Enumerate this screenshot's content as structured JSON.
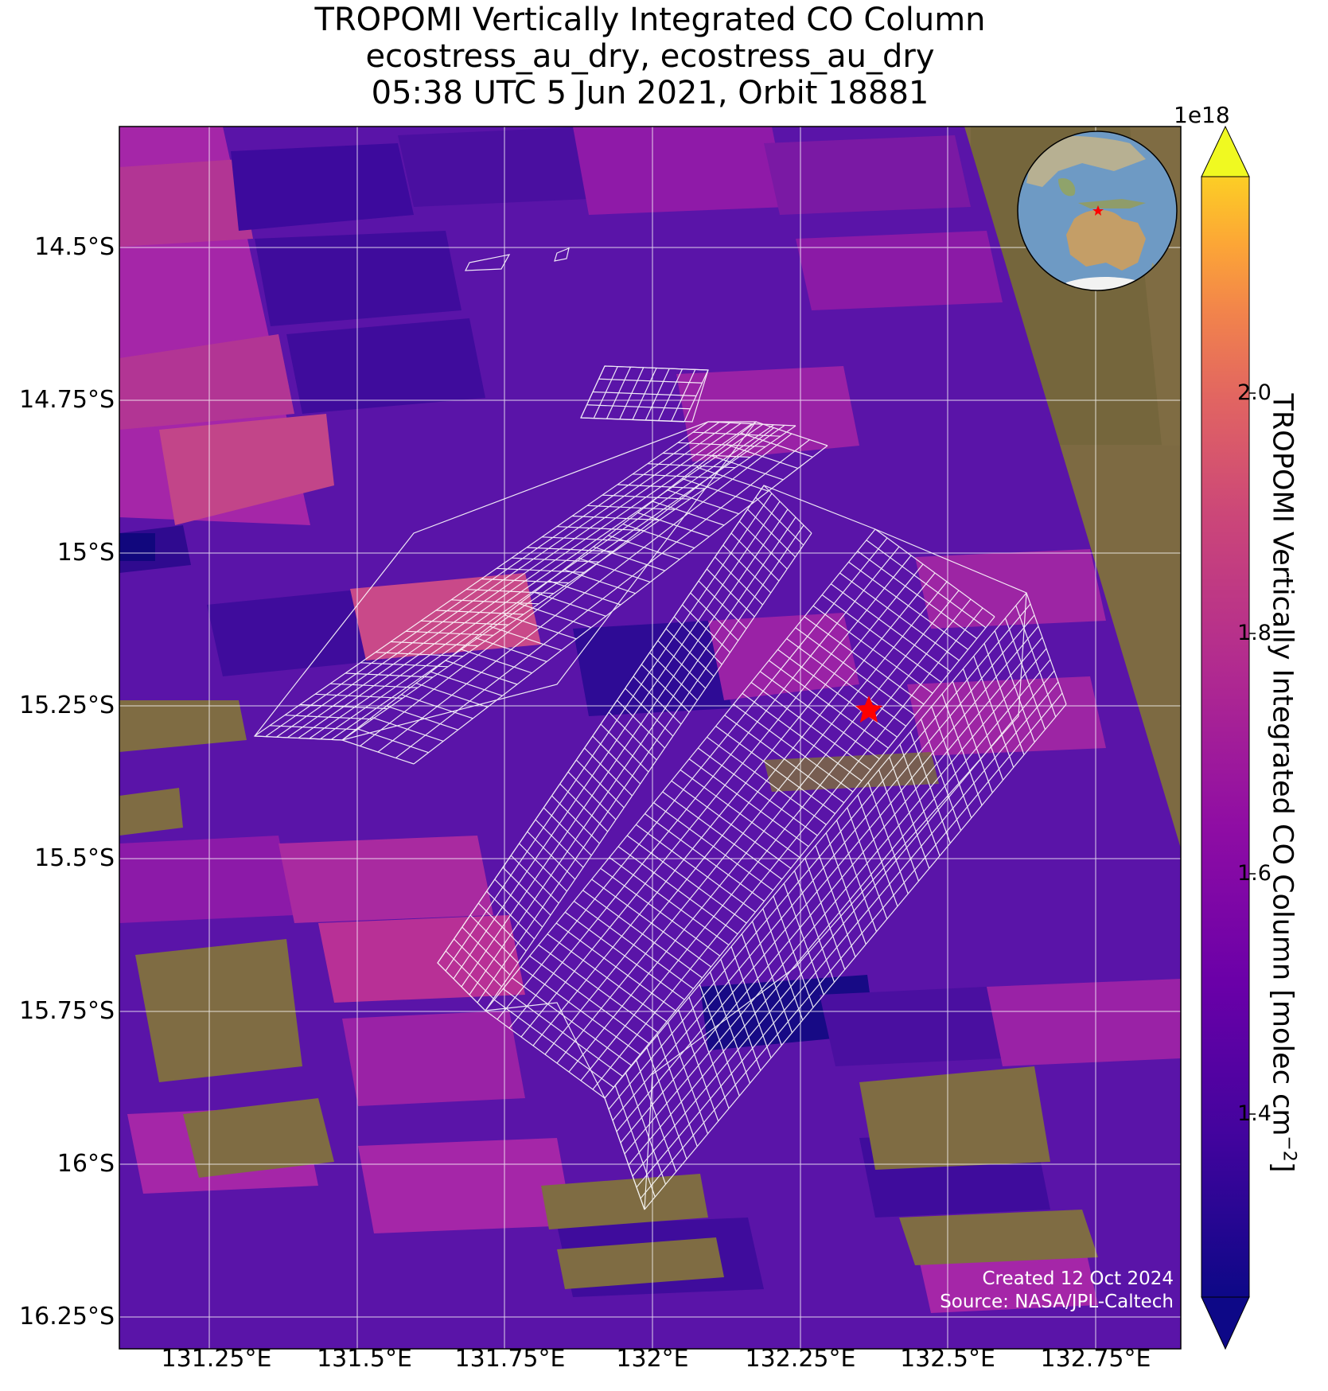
{
  "title": {
    "line1": "TROPOMI Vertically Integrated CO Column",
    "line2": "ecostress_au_dry, ecostress_au_dry",
    "line3": "05:38 UTC 5 Jun 2021, Orbit 18881"
  },
  "map": {
    "lat_ticks": [
      "14.5°S",
      "14.75°S",
      "15°S",
      "15.25°S",
      "15.5°S",
      "15.75°S",
      "16°S",
      "16.25°S"
    ],
    "lon_ticks": [
      "131.25°E",
      "131.5°E",
      "131.75°E",
      "132°E",
      "132.25°E",
      "132.5°E",
      "132.75°E"
    ],
    "site_marker": {
      "icon": "red-star-icon",
      "color": "#ff0000"
    },
    "grid_color": "#ffffff",
    "basemap": "satellite imagery",
    "inset_globe": {
      "icon": "globe-icon",
      "region": "Australia / Southeast Asia"
    }
  },
  "colorbar": {
    "label": "TROPOMI Vertically Integrated CO Column [molec cm",
    "label_exp": "−2",
    "label_close": "]",
    "exponent": "1e18",
    "ticks": [
      "2.0",
      "1.8",
      "1.6",
      "1.4"
    ],
    "colormap": "plasma",
    "extend": "both",
    "colors": [
      "#0d0887",
      "#5302a3",
      "#8b0aa5",
      "#b83289",
      "#db5c68",
      "#f48849",
      "#febc2a",
      "#f0f921"
    ]
  },
  "credit": {
    "created": "Created 12 Oct 2024",
    "source": "Source: NASA/JPL-Caltech"
  }
}
